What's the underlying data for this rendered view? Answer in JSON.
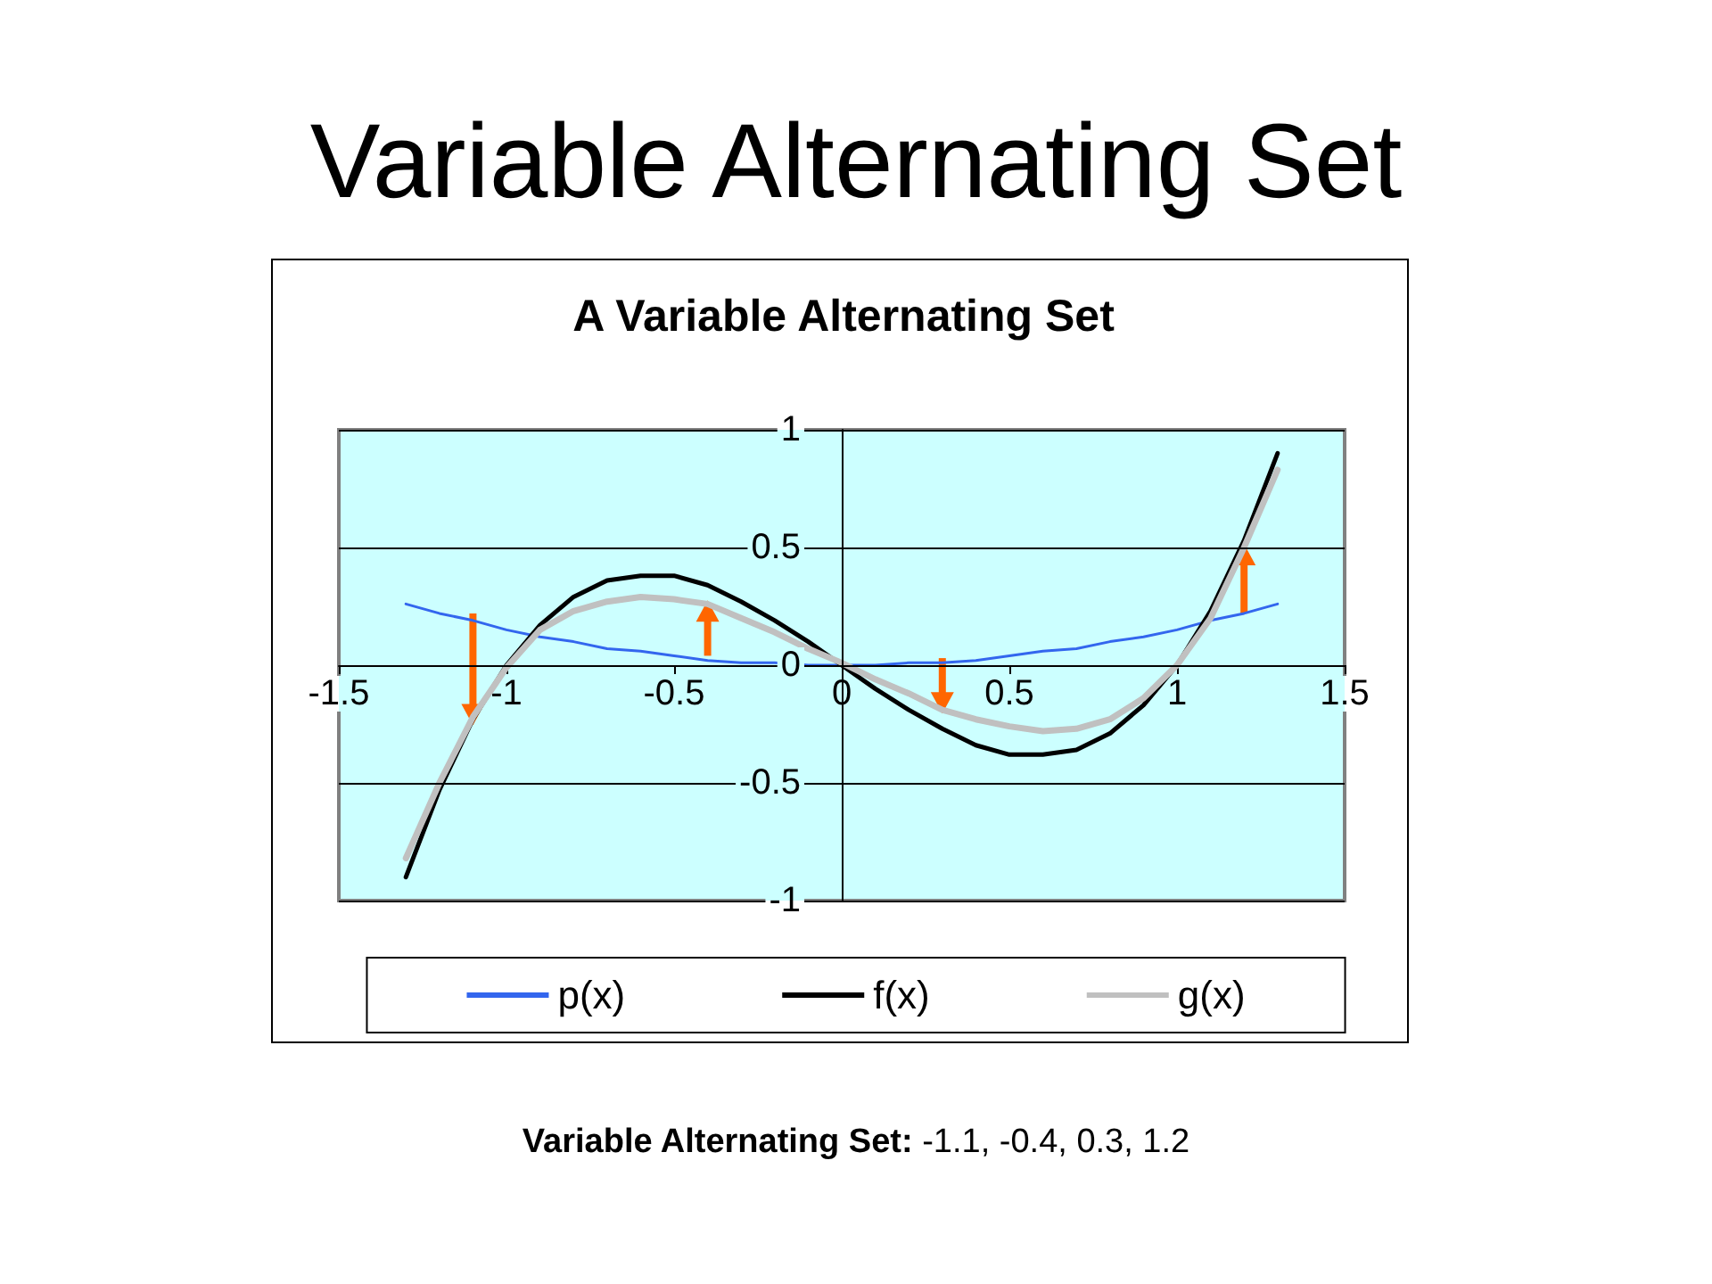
{
  "chart_data": {
    "type": "line",
    "title": "Variable Alternating Set",
    "subtitle": "A Variable Alternating Set",
    "annotations": [
      "Variable Alternating Set: -1.1, -0.4, 0.3, 1.2"
    ],
    "x": [
      -1.3,
      -1.2,
      -1.1,
      -1,
      -0.9,
      -0.8,
      -0.7,
      -0.6,
      -0.5,
      -0.4,
      -0.3,
      -0.2,
      -0.1,
      0,
      0.1,
      0.2,
      0.3,
      0.4,
      0.5,
      0.6,
      0.7,
      0.8,
      0.9,
      1,
      1.1,
      1.2,
      1.3
    ],
    "series": [
      {
        "name": "p(x)",
        "color": "#3366ee",
        "values": [
          0.26,
          0.22,
          0.19,
          0.15,
          0.12,
          0.1,
          0.07,
          0.06,
          0.04,
          0.02,
          0.01,
          0.01,
          0,
          0,
          0,
          0.01,
          0.01,
          0.02,
          0.04,
          0.06,
          0.07,
          0.1,
          0.12,
          0.15,
          0.19,
          0.22,
          0.26
        ]
      },
      {
        "name": "f(x)",
        "color": "#000000",
        "values": [
          -0.9,
          -0.53,
          -0.23,
          0,
          0.17,
          0.29,
          0.36,
          0.38,
          0.38,
          0.34,
          0.27,
          0.19,
          0.1,
          0,
          -0.1,
          -0.19,
          -0.27,
          -0.34,
          -0.38,
          -0.38,
          -0.36,
          -0.29,
          -0.17,
          0,
          0.23,
          0.53,
          0.9
        ]
      },
      {
        "name": "g(x)",
        "color": "#c0c0c0",
        "values": [
          -0.82,
          -0.5,
          -0.22,
          -0.01,
          0.15,
          0.23,
          0.27,
          0.29,
          0.28,
          0.26,
          0.2,
          0.14,
          0.07,
          0.01,
          -0.06,
          -0.12,
          -0.19,
          -0.23,
          -0.26,
          -0.28,
          -0.27,
          -0.23,
          -0.14,
          0,
          0.2,
          0.5,
          0.83
        ]
      },
      {
        "color": "#ff6600",
        "marker": "triangle",
        "x": [
          -1.1,
          -1.1
        ],
        "values": [
          0.22,
          -0.21
        ]
      },
      {
        "color": "#ff6600",
        "marker": "triangle",
        "x": [
          -0.4,
          -0.4
        ],
        "values": [
          0.04,
          0.23
        ]
      },
      {
        "color": "#ff6600",
        "marker": "triangle",
        "x": [
          0.3,
          0.3
        ],
        "values": [
          0.03,
          -0.16
        ]
      },
      {
        "color": "#ff6600",
        "marker": "triangle",
        "x": [
          1.2,
          1.2
        ],
        "values": [
          0.22,
          0.47
        ]
      }
    ],
    "xlim": [
      -1.5,
      1.5
    ],
    "xticks": [
      -1.5,
      -1,
      -0.5,
      0,
      0.5,
      1,
      1.5
    ],
    "ylim": [
      -1,
      1
    ],
    "yticks": [
      -1,
      -0.5,
      0,
      0.5,
      1
    ],
    "grid": "y",
    "legend": "bottom"
  }
}
